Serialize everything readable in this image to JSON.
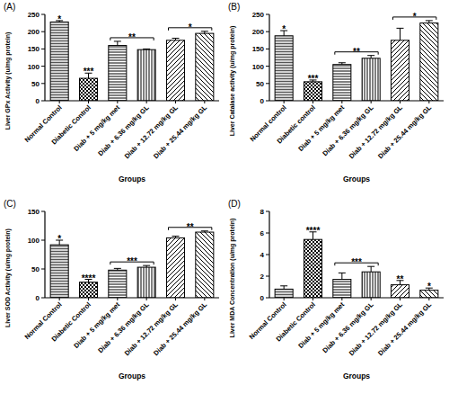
{
  "chart_data": [
    {
      "type": "bar",
      "title": "(A)",
      "x_label": "Groups",
      "y_label": "Liver GPx Activity (u/mg protein)",
      "categories": [
        "Normal Control",
        "Diabetic Control",
        "Diab + 5 mg/kg met",
        "Diab + 6.36 mg/kg GL",
        "Diab + 12.72 mg/kg GL",
        "Diab + 25.44 mg/kg GL"
      ],
      "values": [
        228,
        65,
        160,
        148,
        175,
        195
      ],
      "errors": [
        4,
        15,
        12,
        2,
        6,
        6
      ],
      "ylim": [
        0,
        250
      ],
      "yticks": [
        0,
        50,
        100,
        150,
        200,
        250
      ],
      "color": "#000000",
      "grid": false,
      "annotations": [
        {
          "text": "*",
          "categories": [
            "Normal Control"
          ]
        },
        {
          "text": "***",
          "categories": [
            "Diabetic Control"
          ]
        },
        {
          "text": "**",
          "categories": [
            "Diab + 5 mg/kg met",
            "Diab + 6.36 mg/kg GL"
          ]
        },
        {
          "text": "*",
          "categories": [
            "Diab + 12.72 mg/kg GL",
            "Diab + 25.44 mg/kg GL"
          ]
        }
      ]
    },
    {
      "type": "bar",
      "title": "(B)",
      "x_label": "Groups",
      "y_label": "Liver Catalase activity (u/mg protein)",
      "categories": [
        "Normal control",
        "Diabetic control",
        "Diab + 5 mg/kg met",
        "Diab + 6.36 mg/kg GL",
        "Diab + 12.72 mg/kg GL",
        "Diab + 25.44 mg/kg GL"
      ],
      "values": [
        188,
        55,
        105,
        123,
        175,
        225
      ],
      "errors": [
        15,
        5,
        5,
        8,
        35,
        7
      ],
      "ylim": [
        0,
        250
      ],
      "yticks": [
        0,
        50,
        100,
        150,
        200,
        250
      ],
      "color": "#000000",
      "grid": false,
      "annotations": [
        {
          "text": "*",
          "categories": [
            "Normal control"
          ]
        },
        {
          "text": "***",
          "categories": [
            "Diabetic control"
          ]
        },
        {
          "text": "**",
          "categories": [
            "Diab + 5 mg/kg met",
            "Diab + 6.36 mg/kg GL"
          ]
        },
        {
          "text": "*",
          "categories": [
            "Diab + 12.72 mg/kg GL",
            "Diab + 25.44 mg/kg GL"
          ]
        }
      ]
    },
    {
      "type": "bar",
      "title": "(C)",
      "x_label": "Groups",
      "y_label": "Liver SOD Activity (u/mg protein)",
      "categories": [
        "Normal Control",
        "Diabetic Control",
        "Diab + 5 mg/kg met",
        "Diab + 6.36 mg/kg GL",
        "Diab + 12.72 mg/kg GL",
        "Diab + 25.44 mg/kg GL"
      ],
      "values": [
        92,
        27,
        48,
        53,
        104,
        114
      ],
      "errors": [
        8,
        5,
        3,
        3,
        3,
        2
      ],
      "ylim": [
        0,
        150
      ],
      "yticks": [
        0,
        50,
        100,
        150
      ],
      "color": "#000000",
      "grid": false,
      "annotations": [
        {
          "text": "*",
          "categories": [
            "Normal Control"
          ]
        },
        {
          "text": "****",
          "categories": [
            "Diabetic Control"
          ]
        },
        {
          "text": "***",
          "categories": [
            "Diab + 5 mg/kg met",
            "Diab + 6.36 mg/kg GL"
          ]
        },
        {
          "text": "**",
          "categories": [
            "Diab + 12.72 mg/kg GL",
            "Diab + 25.44 mg/kg GL"
          ]
        }
      ]
    },
    {
      "type": "bar",
      "title": "(D)",
      "x_label": "Groups",
      "y_label": "Liver MDA Concentration (u/mg protein)",
      "categories": [
        "Normal Control",
        "Diabetic Control",
        "Diab + 5 mg/kg met",
        "Diab + 6.36 mg/kg GL",
        "Diab + 12.72 mg/kg GL",
        "Diab + 25.44 mg/kg GL"
      ],
      "values": [
        0.8,
        5.4,
        1.7,
        2.4,
        1.2,
        0.7
      ],
      "errors": [
        0.3,
        0.7,
        0.6,
        0.5,
        0.4,
        0.2
      ],
      "ylim": [
        0,
        8
      ],
      "yticks": [
        0,
        2,
        4,
        6,
        8
      ],
      "color": "#000000",
      "grid": false,
      "annotations": [
        {
          "text": "****",
          "categories": [
            "Diabetic Control"
          ]
        },
        {
          "text": "***",
          "categories": [
            "Diab + 5 mg/kg met",
            "Diab + 6.36 mg/kg GL"
          ]
        },
        {
          "text": "**",
          "categories": [
            "Diab + 12.72 mg/kg GL"
          ]
        },
        {
          "text": "*",
          "categories": [
            "Diab + 25.44 mg/kg GL"
          ]
        }
      ]
    }
  ]
}
